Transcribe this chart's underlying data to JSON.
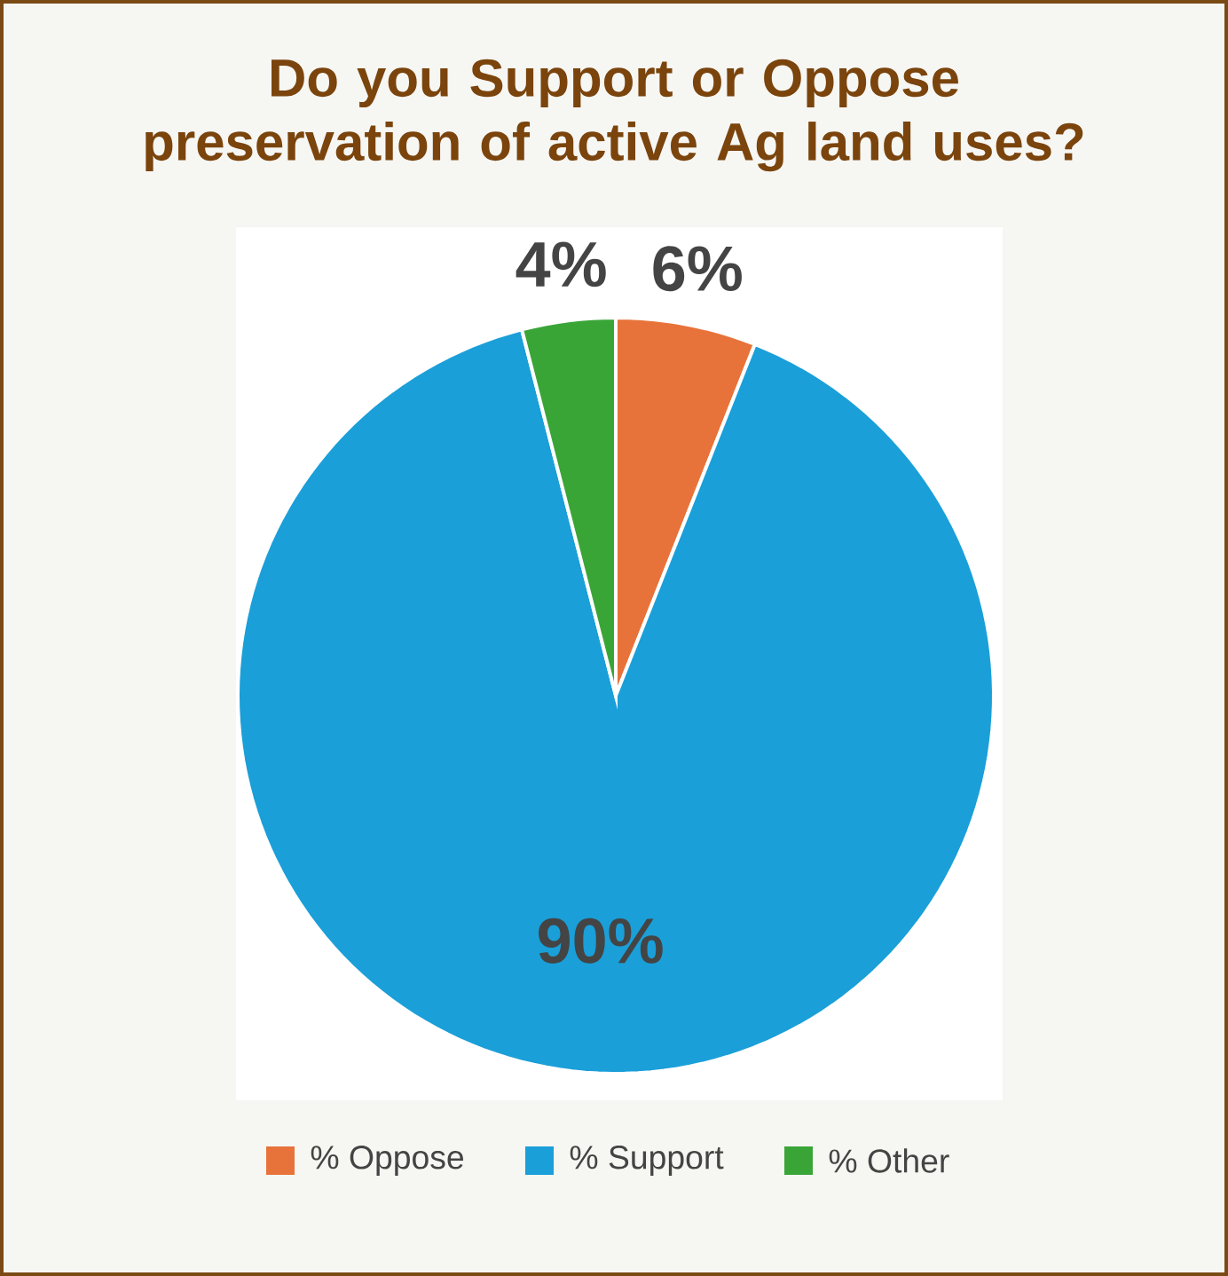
{
  "chart_data": {
    "type": "pie",
    "title": "Do you Support or Oppose preservation of active Ag land uses?",
    "categories": [
      "% Oppose",
      "% Support",
      "% Other"
    ],
    "values": [
      6,
      90,
      4
    ],
    "colors": [
      "#e8733a",
      "#1a9fd8",
      "#3aa537"
    ],
    "value_labels": [
      "6%",
      "90%",
      "4%"
    ],
    "legend": "bottom"
  }
}
